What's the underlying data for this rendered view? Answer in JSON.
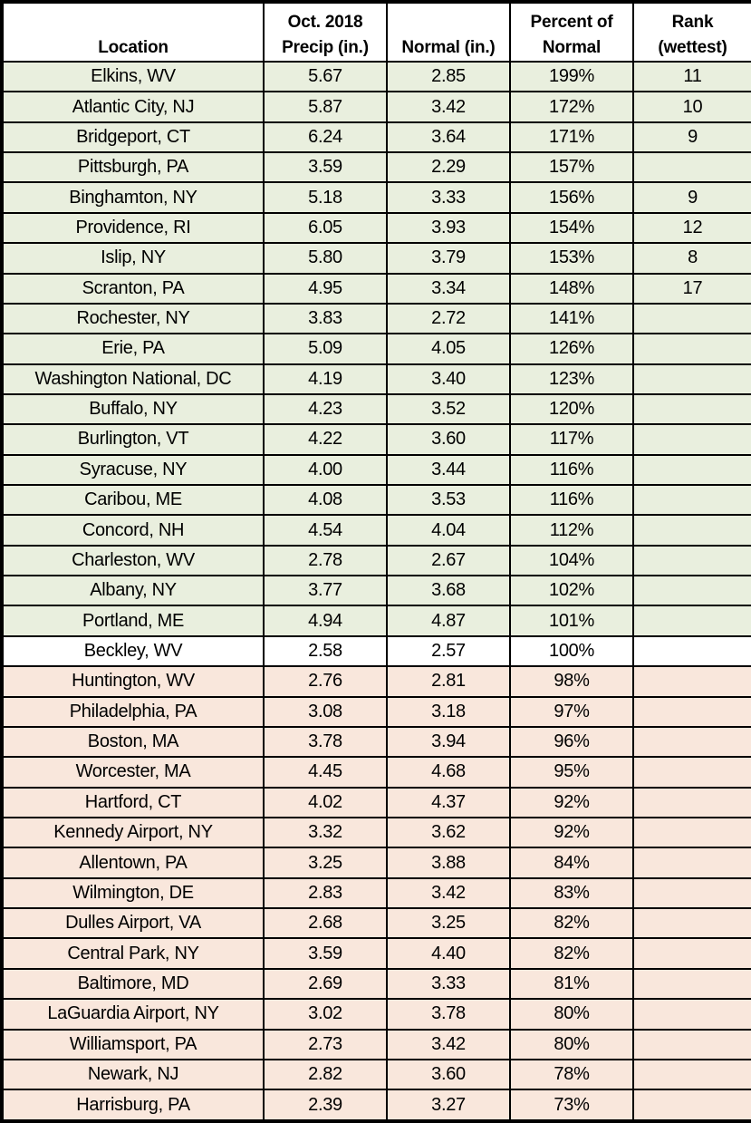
{
  "colors": {
    "above_normal_bg": "#e9efde",
    "at_normal_bg": "#ffffff",
    "below_normal_bg": "#f9e7dc",
    "header_bg": "#ffffff",
    "border": "#000000",
    "text": "#000000"
  },
  "chart_data": {
    "type": "table",
    "title": "",
    "columns": [
      {
        "id": "location",
        "label": "Location"
      },
      {
        "id": "oct-2018-precip",
        "label": "Oct. 2018\nPrecip (in.)"
      },
      {
        "id": "normal",
        "label": "Normal (in.)"
      },
      {
        "id": "percent-of-normal",
        "label": "Percent of\nNormal"
      },
      {
        "id": "rank",
        "label": "Rank\n(wettest)"
      }
    ],
    "banding_legend": {
      "above": "percent of normal greater than 100% (light green)",
      "at": "percent of normal equal to 100% (white)",
      "below": "percent of normal less than 100% (light peach)"
    },
    "rows": [
      {
        "location": "Elkins, WV",
        "precip_in": "5.67",
        "normal_in": "2.85",
        "percent_of_normal": "199%",
        "rank": "11",
        "band": "above"
      },
      {
        "location": "Atlantic City, NJ",
        "precip_in": "5.87",
        "normal_in": "3.42",
        "percent_of_normal": "172%",
        "rank": "10",
        "band": "above"
      },
      {
        "location": "Bridgeport, CT",
        "precip_in": "6.24",
        "normal_in": "3.64",
        "percent_of_normal": "171%",
        "rank": "9",
        "band": "above"
      },
      {
        "location": "Pittsburgh, PA",
        "precip_in": "3.59",
        "normal_in": "2.29",
        "percent_of_normal": "157%",
        "rank": "",
        "band": "above"
      },
      {
        "location": "Binghamton, NY",
        "precip_in": "5.18",
        "normal_in": "3.33",
        "percent_of_normal": "156%",
        "rank": "9",
        "band": "above"
      },
      {
        "location": "Providence, RI",
        "precip_in": "6.05",
        "normal_in": "3.93",
        "percent_of_normal": "154%",
        "rank": "12",
        "band": "above"
      },
      {
        "location": "Islip, NY",
        "precip_in": "5.80",
        "normal_in": "3.79",
        "percent_of_normal": "153%",
        "rank": "8",
        "band": "above"
      },
      {
        "location": "Scranton, PA",
        "precip_in": "4.95",
        "normal_in": "3.34",
        "percent_of_normal": "148%",
        "rank": "17",
        "band": "above"
      },
      {
        "location": "Rochester, NY",
        "precip_in": "3.83",
        "normal_in": "2.72",
        "percent_of_normal": "141%",
        "rank": "",
        "band": "above"
      },
      {
        "location": "Erie, PA",
        "precip_in": "5.09",
        "normal_in": "4.05",
        "percent_of_normal": "126%",
        "rank": "",
        "band": "above"
      },
      {
        "location": "Washington National, DC",
        "precip_in": "4.19",
        "normal_in": "3.40",
        "percent_of_normal": "123%",
        "rank": "",
        "band": "above"
      },
      {
        "location": "Buffalo, NY",
        "precip_in": "4.23",
        "normal_in": "3.52",
        "percent_of_normal": "120%",
        "rank": "",
        "band": "above"
      },
      {
        "location": "Burlington, VT",
        "precip_in": "4.22",
        "normal_in": "3.60",
        "percent_of_normal": "117%",
        "rank": "",
        "band": "above"
      },
      {
        "location": "Syracuse, NY",
        "precip_in": "4.00",
        "normal_in": "3.44",
        "percent_of_normal": "116%",
        "rank": "",
        "band": "above"
      },
      {
        "location": "Caribou, ME",
        "precip_in": "4.08",
        "normal_in": "3.53",
        "percent_of_normal": "116%",
        "rank": "",
        "band": "above"
      },
      {
        "location": "Concord, NH",
        "precip_in": "4.54",
        "normal_in": "4.04",
        "percent_of_normal": "112%",
        "rank": "",
        "band": "above"
      },
      {
        "location": "Charleston, WV",
        "precip_in": "2.78",
        "normal_in": "2.67",
        "percent_of_normal": "104%",
        "rank": "",
        "band": "above"
      },
      {
        "location": "Albany, NY",
        "precip_in": "3.77",
        "normal_in": "3.68",
        "percent_of_normal": "102%",
        "rank": "",
        "band": "above"
      },
      {
        "location": "Portland, ME",
        "precip_in": "4.94",
        "normal_in": "4.87",
        "percent_of_normal": "101%",
        "rank": "",
        "band": "above"
      },
      {
        "location": "Beckley, WV",
        "precip_in": "2.58",
        "normal_in": "2.57",
        "percent_of_normal": "100%",
        "rank": "",
        "band": "at"
      },
      {
        "location": "Huntington, WV",
        "precip_in": "2.76",
        "normal_in": "2.81",
        "percent_of_normal": "98%",
        "rank": "",
        "band": "below"
      },
      {
        "location": "Philadelphia, PA",
        "precip_in": "3.08",
        "normal_in": "3.18",
        "percent_of_normal": "97%",
        "rank": "",
        "band": "below"
      },
      {
        "location": "Boston, MA",
        "precip_in": "3.78",
        "normal_in": "3.94",
        "percent_of_normal": "96%",
        "rank": "",
        "band": "below"
      },
      {
        "location": "Worcester, MA",
        "precip_in": "4.45",
        "normal_in": "4.68",
        "percent_of_normal": "95%",
        "rank": "",
        "band": "below"
      },
      {
        "location": "Hartford, CT",
        "precip_in": "4.02",
        "normal_in": "4.37",
        "percent_of_normal": "92%",
        "rank": "",
        "band": "below"
      },
      {
        "location": "Kennedy Airport, NY",
        "precip_in": "3.32",
        "normal_in": "3.62",
        "percent_of_normal": "92%",
        "rank": "",
        "band": "below"
      },
      {
        "location": "Allentown, PA",
        "precip_in": "3.25",
        "normal_in": "3.88",
        "percent_of_normal": "84%",
        "rank": "",
        "band": "below"
      },
      {
        "location": "Wilmington, DE",
        "precip_in": "2.83",
        "normal_in": "3.42",
        "percent_of_normal": "83%",
        "rank": "",
        "band": "below"
      },
      {
        "location": "Dulles Airport, VA",
        "precip_in": "2.68",
        "normal_in": "3.25",
        "percent_of_normal": "82%",
        "rank": "",
        "band": "below"
      },
      {
        "location": "Central Park, NY",
        "precip_in": "3.59",
        "normal_in": "4.40",
        "percent_of_normal": "82%",
        "rank": "",
        "band": "below"
      },
      {
        "location": "Baltimore, MD",
        "precip_in": "2.69",
        "normal_in": "3.33",
        "percent_of_normal": "81%",
        "rank": "",
        "band": "below"
      },
      {
        "location": "LaGuardia Airport, NY",
        "precip_in": "3.02",
        "normal_in": "3.78",
        "percent_of_normal": "80%",
        "rank": "",
        "band": "below"
      },
      {
        "location": "Williamsport, PA",
        "precip_in": "2.73",
        "normal_in": "3.42",
        "percent_of_normal": "80%",
        "rank": "",
        "band": "below"
      },
      {
        "location": "Newark, NJ",
        "precip_in": "2.82",
        "normal_in": "3.60",
        "percent_of_normal": "78%",
        "rank": "",
        "band": "below"
      },
      {
        "location": "Harrisburg, PA",
        "precip_in": "2.39",
        "normal_in": "3.27",
        "percent_of_normal": "73%",
        "rank": "",
        "band": "below"
      }
    ]
  }
}
